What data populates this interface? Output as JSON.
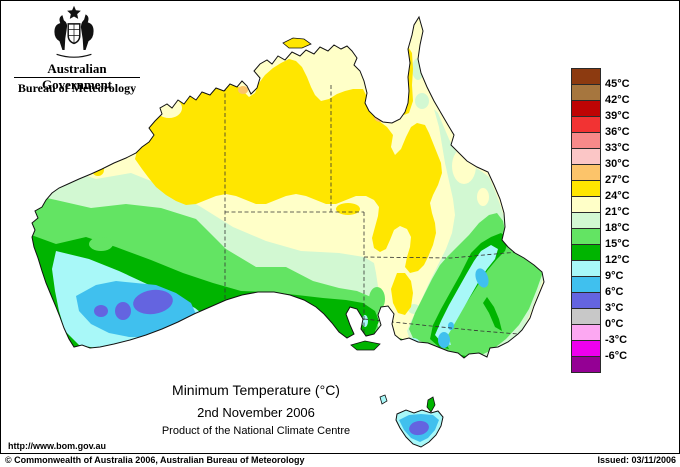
{
  "header": {
    "government": "Australian Government",
    "bureau": "Bureau of Meteorology"
  },
  "title": {
    "main": "Minimum Temperature (°C)",
    "date": "2nd November 2006",
    "product": "Product of the National Climate Centre"
  },
  "palette": {
    "t45plus": "#8C3A10",
    "t42_45": "#A6763E",
    "t39_42": "#BE0404",
    "t36_39": "#F23333",
    "t33_36": "#F78A8A",
    "t30_33": "#FBC6C6",
    "t27_30": "#FCC46A",
    "t24_27": "#FFE600",
    "t21_24": "#FFFFC8",
    "t18_21": "#D2F8D2",
    "t15_18": "#63E463",
    "t12_15": "#00B400",
    "t9_12": "#A8F8F8",
    "t6_9": "#40C0EE",
    "t3_6": "#6464E0",
    "t0_3": "#C8C8C8",
    "tm3_0": "#FCA8F2",
    "tm6_m3": "#EE00EE",
    "tm6minus": "#940094"
  },
  "legend": {
    "labels": [
      "45°C",
      "42°C",
      "39°C",
      "36°C",
      "33°C",
      "30°C",
      "27°C",
      "24°C",
      "21°C",
      "18°C",
      "15°C",
      "12°C",
      "9°C",
      "6°C",
      "3°C",
      "0°C",
      "-3°C",
      "-6°C"
    ],
    "swatch_keys": [
      "t45plus",
      "t42_45",
      "t39_42",
      "t36_39",
      "t33_36",
      "t30_33",
      "t27_30",
      "t24_27",
      "t21_24",
      "t18_21",
      "t15_18",
      "t12_15",
      "t9_12",
      "t6_9",
      "t3_6",
      "t0_3",
      "tm3_0",
      "tm6_m3",
      "tm6minus"
    ]
  },
  "footer": {
    "url": "http://www.bom.gov.au",
    "copyright": "© Commonwealth of Australia 2006, Australian Bureau of Meteorology",
    "issued": "Issued: 03/11/2006"
  }
}
